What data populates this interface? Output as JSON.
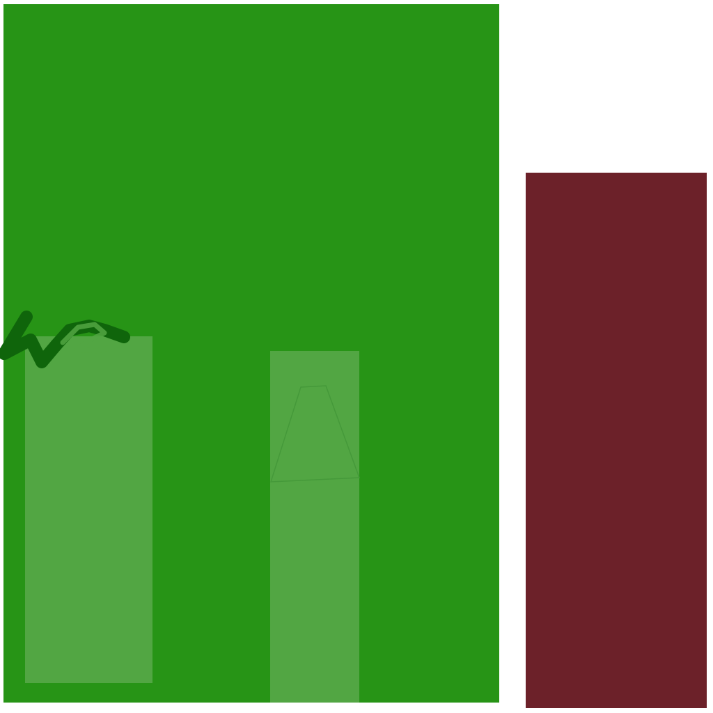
{
  "canvas": {
    "background": "#ffffff"
  },
  "shapes": {
    "green_panel": {
      "color": "#279416"
    },
    "red_panel": {
      "color": "#6c2129"
    },
    "inner_rect_color": "#52a643",
    "scribble_color": "#0f650b"
  }
}
